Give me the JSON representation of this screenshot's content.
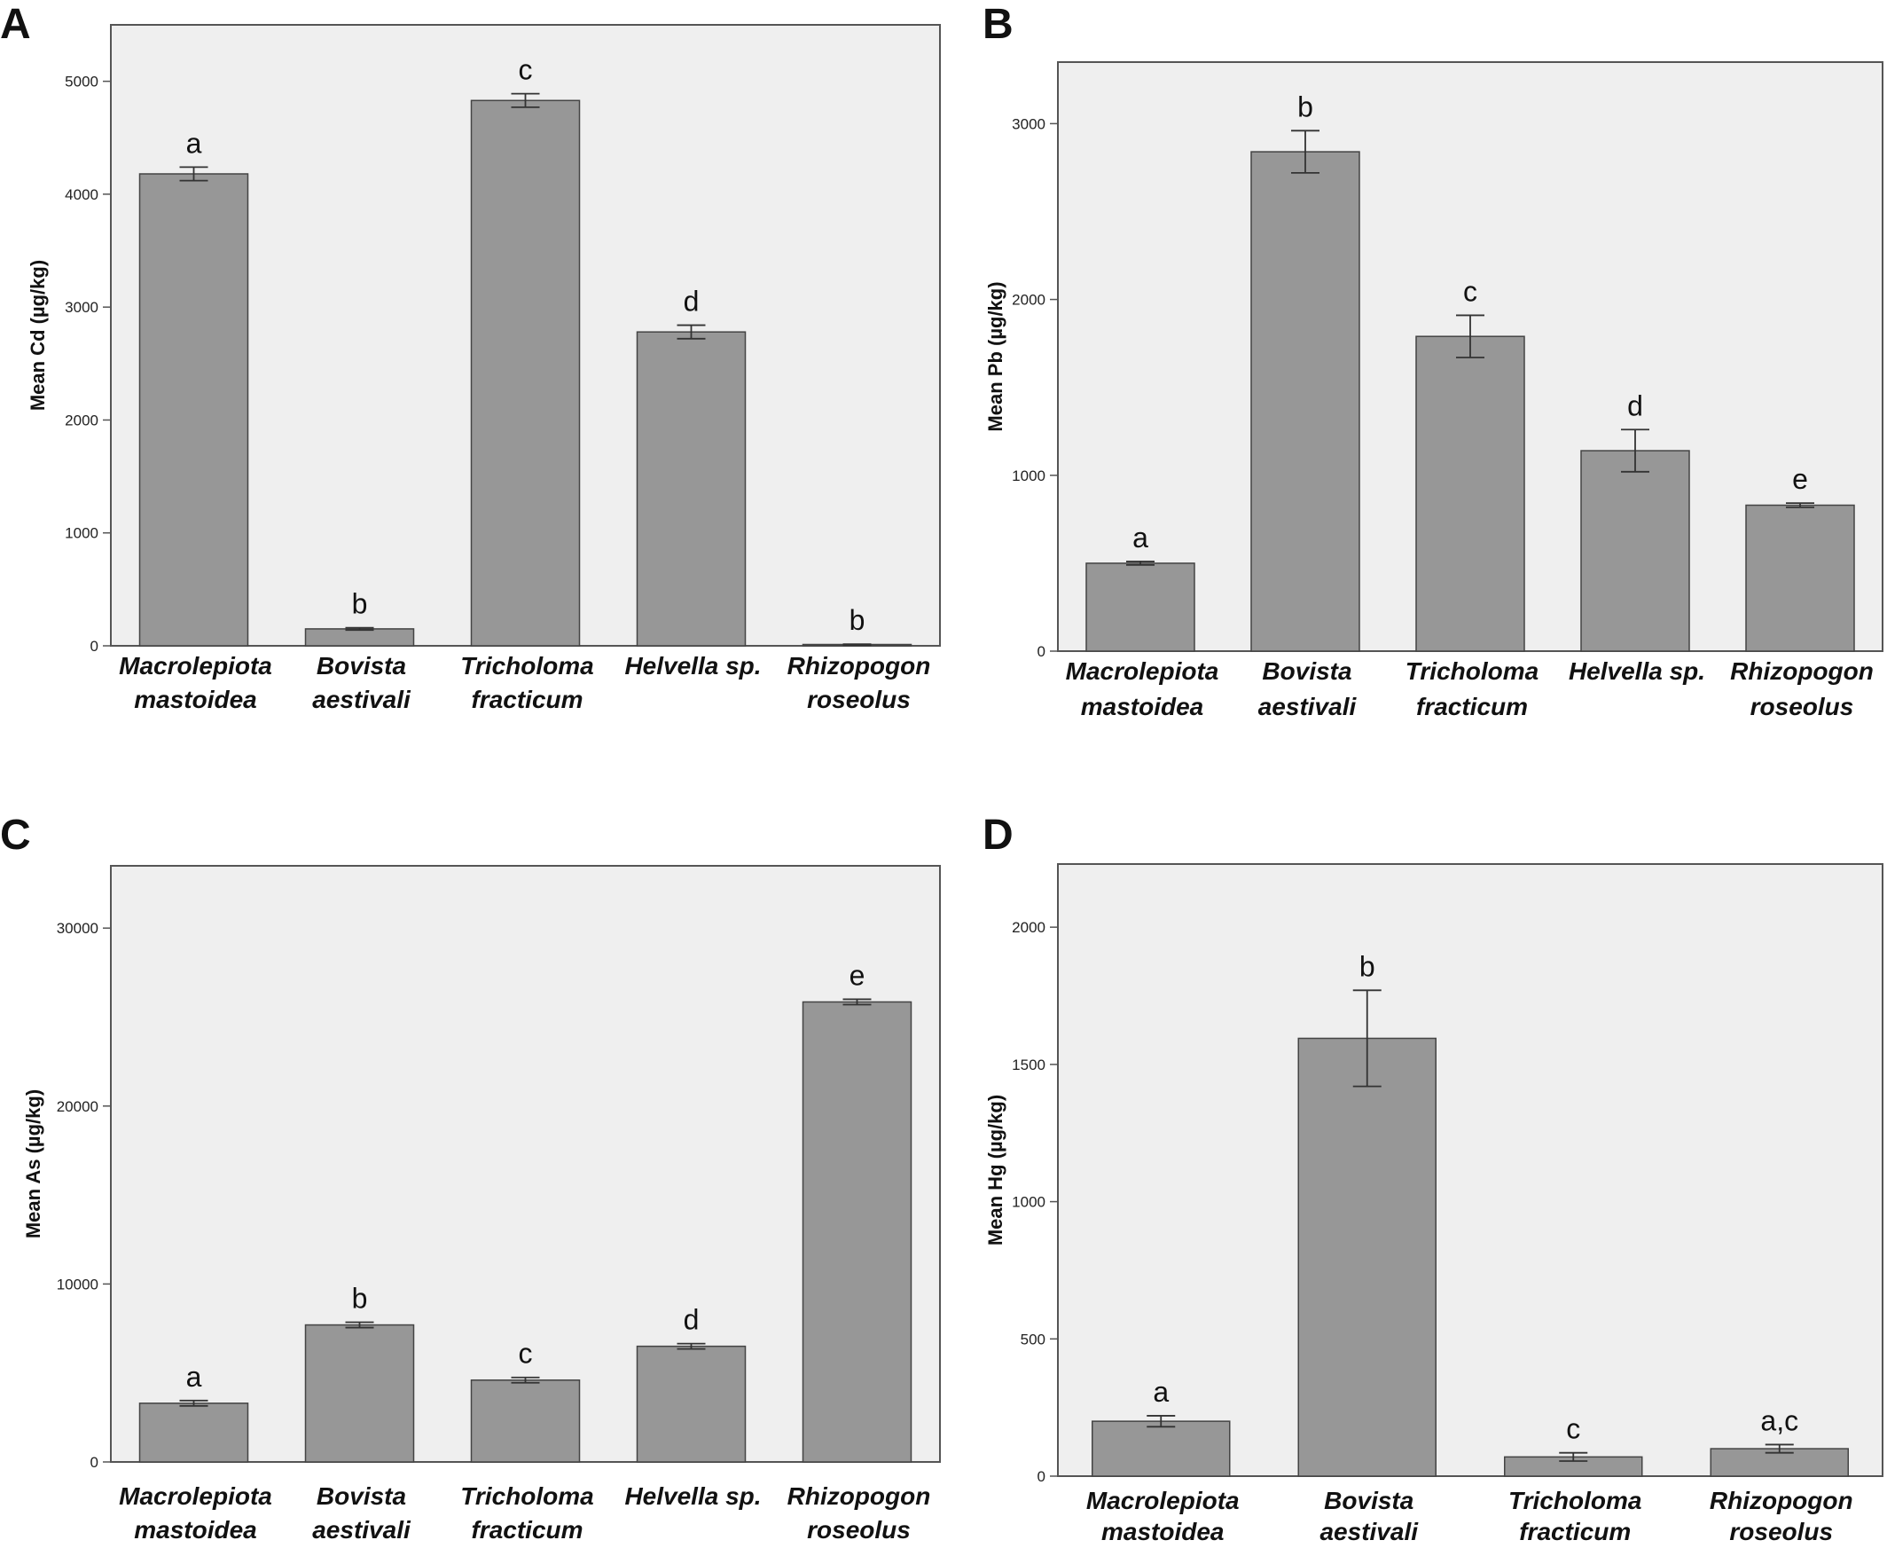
{
  "chart_data": [
    {
      "type": "bar",
      "panel_label": "A",
      "ylabel": "Mean Cd (µg/kg)",
      "categories": [
        [
          "Macrolepiota",
          "mastoidea"
        ],
        [
          "Bovista",
          "aestivali"
        ],
        [
          "Tricholoma",
          "fracticum"
        ],
        [
          "Helvella sp."
        ],
        [
          "Rhizopogon",
          "roseolus"
        ]
      ],
      "values": [
        4180,
        150,
        4830,
        2780,
        10
      ],
      "error": [
        60,
        10,
        60,
        60,
        5
      ],
      "letters": [
        "a",
        "b",
        "c",
        "d",
        "b"
      ],
      "yticks": [
        0,
        1000,
        2000,
        3000,
        4000,
        5000
      ],
      "ylim": [
        0,
        5500
      ],
      "grid": false,
      "colors": {
        "bar": "#979797",
        "plot_bg": "#efefef",
        "axis": "#555555"
      }
    },
    {
      "type": "bar",
      "panel_label": "B",
      "ylabel": "Mean Pb (µg/kg)",
      "categories": [
        [
          "Macrolepiota",
          "mastoidea"
        ],
        [
          "Bovista",
          "aestivali"
        ],
        [
          "Tricholoma",
          "fracticum"
        ],
        [
          "Helvella sp."
        ],
        [
          "Rhizopogon",
          "roseolus"
        ]
      ],
      "values": [
        500,
        2840,
        1790,
        1140,
        830
      ],
      "error": [
        10,
        120,
        120,
        120,
        12
      ],
      "letters": [
        "a",
        "b",
        "c",
        "d",
        "e"
      ],
      "yticks": [
        0,
        1000,
        2000,
        3000
      ],
      "ylim": [
        0,
        3350
      ],
      "grid": false,
      "colors": {
        "bar": "#979797",
        "plot_bg": "#efefef",
        "axis": "#555555"
      }
    },
    {
      "type": "bar",
      "panel_label": "C",
      "ylabel": "Mean As (µg/kg)",
      "categories": [
        [
          "Macrolepiota",
          "mastoidea"
        ],
        [
          "Bovista",
          "aestivali"
        ],
        [
          "Tricholoma",
          "fracticum"
        ],
        [
          "Helvella sp."
        ],
        [
          "Rhizopogon",
          "roseolus"
        ]
      ],
      "values": [
        3300,
        7700,
        4600,
        6500,
        25850
      ],
      "error": [
        150,
        150,
        150,
        150,
        150
      ],
      "letters": [
        "a",
        "b",
        "c",
        "d",
        "e"
      ],
      "yticks": [
        0,
        10000,
        20000,
        30000
      ],
      "ylim": [
        0,
        33500
      ],
      "grid": false,
      "colors": {
        "bar": "#979797",
        "plot_bg": "#efefef",
        "axis": "#555555"
      }
    },
    {
      "type": "bar",
      "panel_label": "D",
      "ylabel": "Mean Hg (µg/kg)",
      "categories": [
        [
          "Macrolepiota",
          "mastoidea"
        ],
        [
          "Bovista",
          "aestivali"
        ],
        [
          "Tricholoma",
          "fracticum"
        ],
        [
          "Rhizopogon",
          "roseolus"
        ]
      ],
      "values": [
        200,
        1595,
        70,
        100
      ],
      "error": [
        20,
        175,
        15,
        15
      ],
      "letters": [
        "a",
        "b",
        "c",
        "a,c"
      ],
      "yticks": [
        0,
        500,
        1000,
        1500,
        2000
      ],
      "ylim": [
        0,
        2230
      ],
      "grid": false,
      "colors": {
        "bar": "#979797",
        "plot_bg": "#efefef",
        "axis": "#555555"
      }
    }
  ]
}
